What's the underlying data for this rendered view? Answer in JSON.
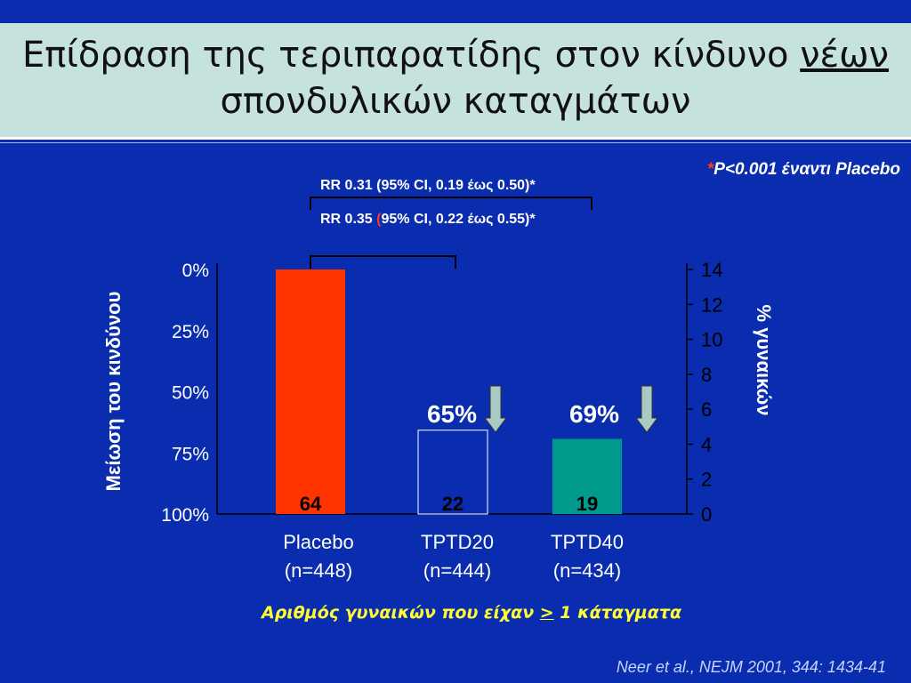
{
  "title": {
    "line1_pre": "Επίδραση της τεριπαρατίδης στον κίνδυνο ",
    "line1_underlined": "νέων",
    "line2": "σπονδυλικών καταγμάτων"
  },
  "p_note": {
    "star": "*",
    "text": "P<0.001 έναντι Placebo"
  },
  "rr_lines": [
    {
      "pre": "RR 0.31 (95% CI, 0.19 έως 0.50)*",
      "paren": "",
      "post": ""
    },
    {
      "pre": "RR 0.35 ",
      "paren": "(",
      "post": "95% CI, 0.22 έως 0.55)*"
    }
  ],
  "reduction_labels": [
    "65%",
    "69%"
  ],
  "x_note": {
    "pre": "Αριθμός γυναικών που είχαν ",
    "underlined": ">",
    "post": " 1 κάταγματα"
  },
  "citation": "Neer et al., NEJM 2001, 344: 1434-41",
  "colors": {
    "placebo": "#ff3300",
    "tptd20": "#0a2cae",
    "tptd40": "#009a8c",
    "arrow": "#a9c9c2"
  },
  "chart_data": {
    "type": "bar",
    "categories": [
      "Placebo\n(n=448)",
      "TPTD20\n(n=444)",
      "TPTD40\n(n=434)"
    ],
    "category_lines": [
      [
        "Placebo",
        "(n=448)"
      ],
      [
        "TPTD20",
        "(n=444)"
      ],
      [
        "TPTD40",
        "(n=434)"
      ]
    ],
    "values": [
      14,
      4.8,
      4.3
    ],
    "data_labels": [
      "64",
      "22",
      "19"
    ],
    "ylabel": "Μείωση του κινδύνου",
    "y2label": "% γυναικών",
    "ylim": [
      0,
      14
    ],
    "yticks": [
      0,
      2,
      4,
      6,
      8,
      10,
      12,
      14
    ],
    "left_ticks": [
      "0%",
      "25%",
      "50%",
      "75%",
      "100%"
    ]
  }
}
